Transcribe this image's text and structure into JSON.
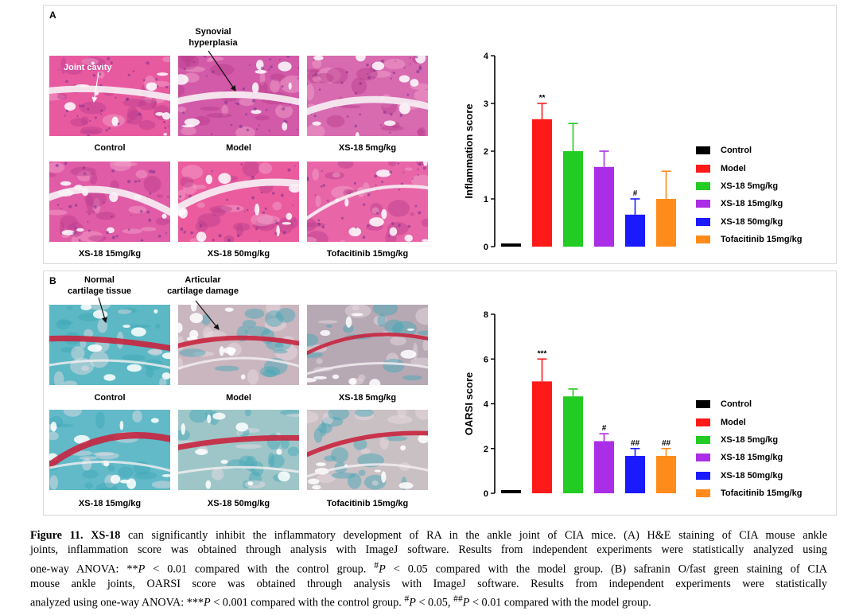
{
  "panelA": {
    "letter": "A",
    "annotations": {
      "synovial_line1": "Synovial",
      "synovial_line2": "hyperplasia",
      "joint_cavity": "Joint cavity"
    },
    "images": [
      {
        "caption": "Control",
        "tint": "#e85aa0"
      },
      {
        "caption": "Model",
        "tint": "#d25aa8"
      },
      {
        "caption": "XS-18 5mg/kg",
        "tint": "#d86ab0"
      },
      {
        "caption": "XS-18 15mg/kg",
        "tint": "#e05ca6"
      },
      {
        "caption": "XS-18 50mg/kg",
        "tint": "#ea5c9e"
      },
      {
        "caption": "Tofacitinib 15mg/kg",
        "tint": "#e866a8"
      }
    ]
  },
  "panelB": {
    "letter": "B",
    "annotations": {
      "normal_line1": "Normal",
      "normal_line2": "cartilage tissue",
      "damage_line1": "Articular",
      "damage_line2": "cartilage damage"
    },
    "images": [
      {
        "caption": "Control",
        "tint": "#5cb8c4"
      },
      {
        "caption": "Model",
        "tint": "#c9b6bf"
      },
      {
        "caption": "XS-18 5mg/kg",
        "tint": "#b7a9b4"
      },
      {
        "caption": "XS-18 15mg/kg",
        "tint": "#62bac8"
      },
      {
        "caption": "XS-18 50mg/kg",
        "tint": "#9ec6c8"
      },
      {
        "caption": "Tofacitinib 15mg/kg",
        "tint": "#c9c0c4"
      }
    ]
  },
  "legend": {
    "items": [
      {
        "label": "Control",
        "color": "#000000"
      },
      {
        "label": "Model",
        "color": "#ff1a1a"
      },
      {
        "label": "XS-18 5mg/kg",
        "color": "#22cc22"
      },
      {
        "label": "XS-18 15mg/kg",
        "color": "#aa2ee6"
      },
      {
        "label": "XS-18 50mg/kg",
        "color": "#1a1aff"
      },
      {
        "label": "Tofacitinib 15mg/kg",
        "color": "#ff8c1a"
      }
    ]
  },
  "chart_data": [
    {
      "type": "bar",
      "ylabel": "Inflammation score",
      "ylim": [
        0,
        4
      ],
      "yticks": [
        "0",
        "1",
        "2",
        "3",
        "4"
      ],
      "categories": [
        "Control",
        "Model",
        "XS-18 5mg/kg",
        "XS-18 15mg/kg",
        "XS-18 50mg/kg",
        "Tofacitinib 15mg/kg"
      ],
      "values": [
        0,
        2.67,
        2.0,
        1.67,
        0.67,
        1.0
      ],
      "errors": [
        0,
        0.33,
        0.58,
        0.33,
        0.33,
        0.58
      ],
      "significance": [
        "",
        "**",
        "",
        "",
        "#",
        ""
      ]
    },
    {
      "type": "bar",
      "ylabel": "OARSI score",
      "ylim": [
        0,
        8
      ],
      "yticks": [
        "0",
        "2",
        "4",
        "6",
        "8"
      ],
      "categories": [
        "Control",
        "Model",
        "XS-18 5mg/kg",
        "XS-18 15mg/kg",
        "XS-18 50mg/kg",
        "Tofacitinib 15mg/kg"
      ],
      "values": [
        0,
        5.0,
        4.33,
        2.33,
        1.67,
        1.67
      ],
      "errors": [
        0,
        1.0,
        0.33,
        0.33,
        0.33,
        0.33
      ],
      "significance": [
        "",
        "***",
        "",
        "#",
        "##",
        "##"
      ]
    }
  ],
  "caption": {
    "l1_fig": "Figure 11.",
    "l1_bold": "XS-18",
    "l1_rest": "can significantly inhibit the inflammatory development of RA in the ankle joint of CIA mice. (A) H&E staining of CIA mouse ankle",
    "l2": "joints, inflammation score was obtained through analysis with ImageJ software. Results from independent experiments were statistically analyzed using",
    "l3a": "one-way ANOVA: **",
    "l3b": "P",
    "l3c": " < 0.01 compared with the control group. ",
    "l3d": "#",
    "l3e": "P",
    "l3f": " < 0.05 compared with the model group. (B) safranin O/fast green staining of CIA",
    "l4": "mouse ankle joints, OARSI score was obtained through analysis with ImageJ software. Results from independent experiments were statistically",
    "l5a": "analyzed using one-way ANOVA: ***",
    "l5b": "P",
    "l5c": " < 0.001 compared with the control group. ",
    "l5d": "#",
    "l5e": "P",
    "l5f": " < 0.05, ",
    "l5g": "##",
    "l5h": "P",
    "l5i": " < 0.01 compared with the model group."
  }
}
